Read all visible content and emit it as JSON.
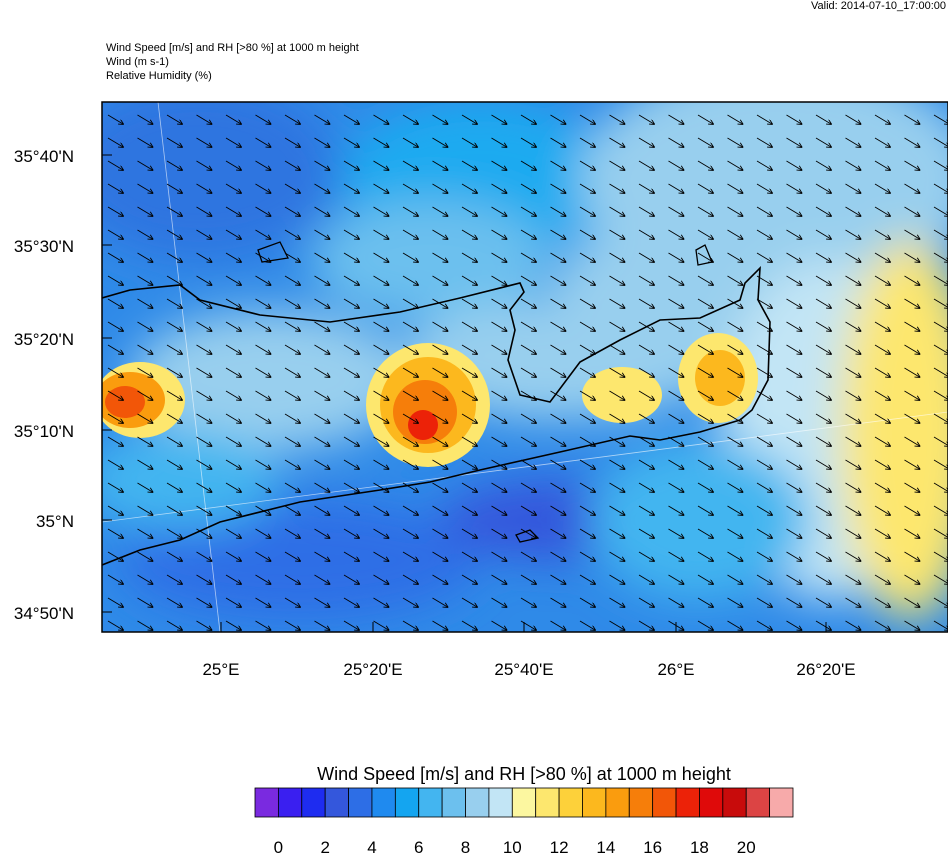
{
  "header": {
    "valid": "Valid: 2014-07-10_17:00:00",
    "lines": [
      "Wind Speed [m/s] and RH [>80 %] at 1000 m height",
      "Wind   (m s-1)",
      "Relative Humidity   (%)"
    ]
  },
  "map": {
    "lat_labels": [
      "35°40'N",
      "35°30'N",
      "35°20'N",
      "35°10'N",
      "35°N",
      "34°50'N"
    ],
    "lon_labels": [
      "25°E",
      "25°20'E",
      "25°40'E",
      "26°E",
      "26°20'E"
    ]
  },
  "colorbar": {
    "title": "Wind Speed [m/s] and RH [>80 %] at 1000 m height",
    "colors": [
      "#7a2ae0",
      "#3a1ff0",
      "#1e2cf0",
      "#3457dc",
      "#2d6ee6",
      "#1f8aef",
      "#14a5f0",
      "#43b5f0",
      "#6cc0ee",
      "#98cfee",
      "#c2e5f5",
      "#fcf7a0",
      "#fde76e",
      "#fdd13a",
      "#fcb81e",
      "#fa9c0e",
      "#f67e0a",
      "#f25608",
      "#ec2208",
      "#df0a0a",
      "#c80b0b",
      "#dc4444",
      "#f7aaaa"
    ],
    "labels": [
      0,
      2,
      4,
      6,
      8,
      10,
      12,
      14,
      16,
      18,
      20
    ]
  }
}
